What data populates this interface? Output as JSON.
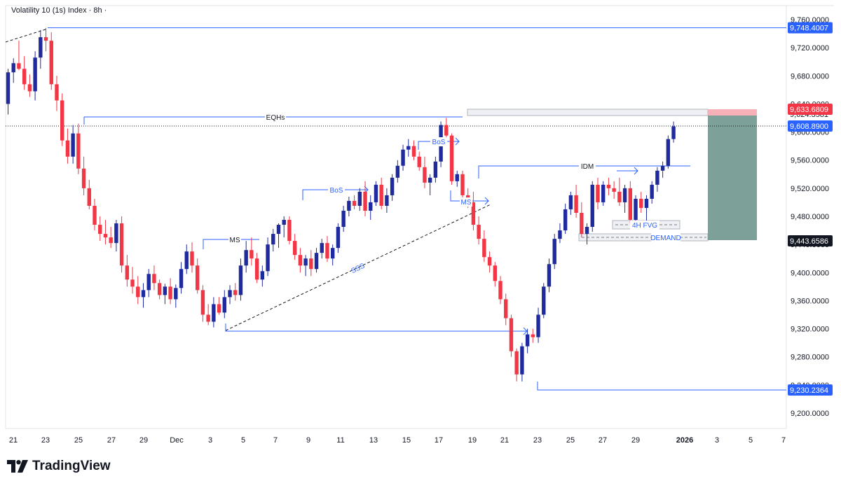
{
  "header": {
    "title": "Volatility 10 (1s) Index · 8h ·"
  },
  "brand": {
    "name": "TradingView"
  },
  "colors": {
    "bull": "#1e2a9e",
    "bear": "#f23645",
    "line": "#2962ff",
    "last_price_label": "#2962ff",
    "entry_label": "#131722",
    "stop_label": "#f23645",
    "target_zone": "#5c8a7e",
    "stop_zone": "#f7a8b0"
  },
  "chart_data": {
    "type": "candlestick",
    "y_range": [
      9190,
      9770
    ],
    "y_ticks": [
      "9,760.0000",
      "9,720.0000",
      "9,680.0000",
      "9,640.0000",
      "9,600.0000",
      "9,560.0000",
      "9,520.0000",
      "9,480.0000",
      "9,440.0000",
      "9,400.0000",
      "9,360.0000",
      "9,320.0000",
      "9,280.0000",
      "9,240.0000",
      "9,200.0000"
    ],
    "x_ticks": [
      "21",
      "23",
      "25",
      "27",
      "29",
      "Dec",
      "3",
      "5",
      "7",
      "9",
      "11",
      "13",
      "15",
      "17",
      "19",
      "21",
      "23",
      "25",
      "27",
      "29",
      "2026",
      "3",
      "5",
      "7"
    ],
    "price_labels": {
      "high": "9,748.4007",
      "stop": "9,633.6809",
      "stop_partial": "9,624.3581",
      "last": "9,608.8900",
      "entry": "9,443.6586",
      "low": "9,230.2364"
    },
    "annotations": [
      "EQHs",
      "BoS",
      "BoS",
      "MS",
      "MS",
      "IDM",
      "SSS",
      "4H FVG",
      "DEMAND"
    ],
    "ohlc": [
      [
        9640,
        9690,
        9625,
        9685
      ],
      [
        9685,
        9705,
        9670,
        9698
      ],
      [
        9698,
        9730,
        9688,
        9690
      ],
      [
        9690,
        9708,
        9660,
        9668
      ],
      [
        9668,
        9682,
        9650,
        9658
      ],
      [
        9658,
        9715,
        9645,
        9706
      ],
      [
        9706,
        9745,
        9690,
        9735
      ],
      [
        9735,
        9748,
        9715,
        9730
      ],
      [
        9730,
        9742,
        9660,
        9668
      ],
      [
        9668,
        9680,
        9630,
        9645
      ],
      [
        9645,
        9655,
        9580,
        9588
      ],
      [
        9588,
        9605,
        9555,
        9565
      ],
      [
        9565,
        9610,
        9555,
        9598
      ],
      [
        9598,
        9612,
        9540,
        9548
      ],
      [
        9548,
        9565,
        9510,
        9520
      ],
      [
        9520,
        9532,
        9490,
        9495
      ],
      [
        9495,
        9505,
        9460,
        9468
      ],
      [
        9468,
        9480,
        9445,
        9455
      ],
      [
        9455,
        9475,
        9440,
        9450
      ],
      [
        9450,
        9465,
        9435,
        9442
      ],
      [
        9442,
        9475,
        9430,
        9470
      ],
      [
        9470,
        9480,
        9400,
        9410
      ],
      [
        9410,
        9425,
        9380,
        9390
      ],
      [
        9390,
        9408,
        9370,
        9380
      ],
      [
        9380,
        9395,
        9355,
        9365
      ],
      [
        9365,
        9385,
        9350,
        9375
      ],
      [
        9375,
        9405,
        9365,
        9398
      ],
      [
        9398,
        9410,
        9375,
        9385
      ],
      [
        9385,
        9390,
        9362,
        9368
      ],
      [
        9368,
        9384,
        9355,
        9380
      ],
      [
        9380,
        9392,
        9355,
        9362
      ],
      [
        9362,
        9383,
        9350,
        9378
      ],
      [
        9378,
        9415,
        9370,
        9405
      ],
      [
        9405,
        9440,
        9398,
        9430
      ],
      [
        9430,
        9443,
        9400,
        9410
      ],
      [
        9410,
        9420,
        9370,
        9375
      ],
      [
        9375,
        9382,
        9330,
        9340
      ],
      [
        9340,
        9355,
        9325,
        9330
      ],
      [
        9330,
        9365,
        9322,
        9355
      ],
      [
        9355,
        9365,
        9340,
        9343
      ],
      [
        9343,
        9375,
        9335,
        9365
      ],
      [
        9365,
        9382,
        9355,
        9375
      ],
      [
        9375,
        9385,
        9360,
        9368
      ],
      [
        9368,
        9420,
        9360,
        9410
      ],
      [
        9410,
        9445,
        9400,
        9432
      ],
      [
        9432,
        9450,
        9410,
        9420
      ],
      [
        9420,
        9428,
        9385,
        9390
      ],
      [
        9390,
        9410,
        9380,
        9402
      ],
      [
        9402,
        9450,
        9395,
        9440
      ],
      [
        9440,
        9462,
        9430,
        9455
      ],
      [
        9455,
        9470,
        9435,
        9468
      ],
      [
        9468,
        9480,
        9450,
        9475
      ],
      [
        9475,
        9480,
        9440,
        9445
      ],
      [
        9445,
        9455,
        9418,
        9425
      ],
      [
        9425,
        9435,
        9400,
        9410
      ],
      [
        9410,
        9425,
        9395,
        9420
      ],
      [
        9420,
        9432,
        9395,
        9405
      ],
      [
        9405,
        9435,
        9400,
        9428
      ],
      [
        9428,
        9448,
        9420,
        9442
      ],
      [
        9442,
        9452,
        9415,
        9420
      ],
      [
        9420,
        9440,
        9410,
        9435
      ],
      [
        9435,
        9470,
        9428,
        9465
      ],
      [
        9465,
        9495,
        9458,
        9488
      ],
      [
        9488,
        9508,
        9480,
        9502
      ],
      [
        9502,
        9510,
        9490,
        9495
      ],
      [
        9495,
        9520,
        9488,
        9515
      ],
      [
        9515,
        9530,
        9480,
        9488
      ],
      [
        9488,
        9510,
        9475,
        9500
      ],
      [
        9500,
        9530,
        9495,
        9525
      ],
      [
        9525,
        9535,
        9490,
        9495
      ],
      [
        9495,
        9520,
        9485,
        9510
      ],
      [
        9510,
        9540,
        9502,
        9535
      ],
      [
        9535,
        9560,
        9528,
        9552
      ],
      [
        9552,
        9582,
        9545,
        9575
      ],
      [
        9575,
        9590,
        9565,
        9580
      ],
      [
        9580,
        9588,
        9560,
        9565
      ],
      [
        9565,
        9572,
        9545,
        9550
      ],
      [
        9550,
        9565,
        9520,
        9528
      ],
      [
        9528,
        9540,
        9510,
        9535
      ],
      [
        9535,
        9565,
        9528,
        9558
      ],
      [
        9558,
        9615,
        9550,
        9610
      ],
      [
        9610,
        9620,
        9590,
        9595
      ],
      [
        9595,
        9598,
        9525,
        9530
      ],
      [
        9530,
        9545,
        9522,
        9540
      ],
      [
        9540,
        9545,
        9500,
        9510
      ],
      [
        9510,
        9520,
        9492,
        9500
      ],
      [
        9500,
        9515,
        9460,
        9468
      ],
      [
        9468,
        9480,
        9440,
        9448
      ],
      [
        9448,
        9460,
        9415,
        9422
      ],
      [
        9422,
        9430,
        9400,
        9410
      ],
      [
        9410,
        9415,
        9380,
        9388
      ],
      [
        9388,
        9395,
        9355,
        9362
      ],
      [
        9362,
        9370,
        9325,
        9335
      ],
      [
        9335,
        9340,
        9280,
        9288
      ],
      [
        9288,
        9292,
        9245,
        9255
      ],
      [
        9255,
        9300,
        9245,
        9295
      ],
      [
        9295,
        9320,
        9285,
        9312
      ],
      [
        9312,
        9320,
        9300,
        9308
      ],
      [
        9308,
        9350,
        9300,
        9340
      ],
      [
        9340,
        9385,
        9335,
        9380
      ],
      [
        9380,
        9420,
        9372,
        9412
      ],
      [
        9412,
        9455,
        9405,
        9448
      ],
      [
        9448,
        9470,
        9442,
        9460
      ],
      [
        9460,
        9498,
        9455,
        9490
      ],
      [
        9490,
        9515,
        9482,
        9510
      ],
      [
        9510,
        9525,
        9478,
        9485
      ],
      [
        9485,
        9500,
        9450,
        9455
      ],
      [
        9455,
        9470,
        9440,
        9465
      ],
      [
        9465,
        9530,
        9458,
        9525
      ],
      [
        9525,
        9535,
        9490,
        9500
      ],
      [
        9500,
        9530,
        9495,
        9525
      ],
      [
        9525,
        9535,
        9510,
        9520
      ],
      [
        9520,
        9530,
        9505,
        9515
      ],
      [
        9515,
        9535,
        9495,
        9500
      ],
      [
        9500,
        9525,
        9485,
        9520
      ],
      [
        9520,
        9530,
        9470,
        9475
      ],
      [
        9475,
        9510,
        9465,
        9505
      ],
      [
        9505,
        9515,
        9485,
        9492
      ],
      [
        9492,
        9510,
        9470,
        9505
      ],
      [
        9505,
        9530,
        9498,
        9525
      ],
      [
        9525,
        9550,
        9515,
        9545
      ],
      [
        9545,
        9558,
        9535,
        9552
      ],
      [
        9552,
        9595,
        9548,
        9590
      ],
      [
        9590,
        9615,
        9585,
        9608
      ]
    ]
  }
}
